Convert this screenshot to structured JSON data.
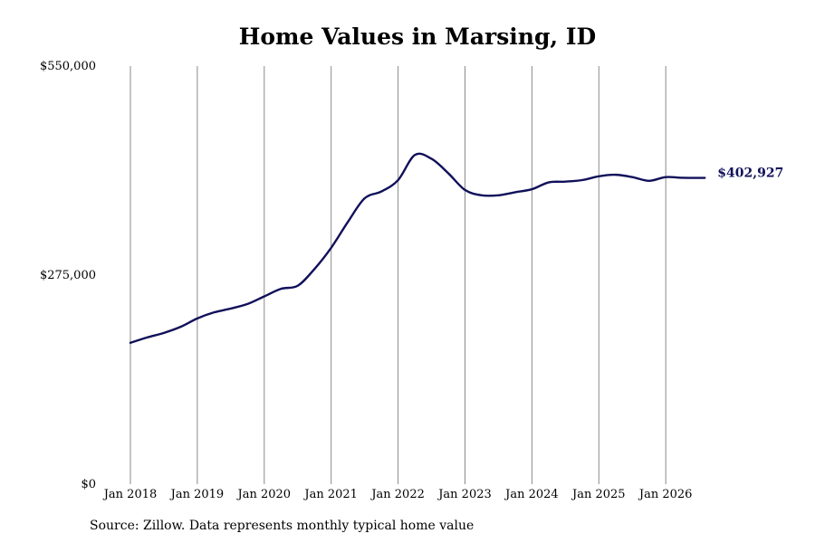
{
  "chart_data": {
    "type": "line",
    "title": "Home Values in Marsing, ID",
    "xlabel": "",
    "ylabel": "",
    "x_ticks": [
      "Jan 2018",
      "Jan 2019",
      "Jan 2020",
      "Jan 2021",
      "Jan 2022",
      "Jan 2023",
      "Jan 2024",
      "Jan 2025",
      "Jan 2026"
    ],
    "y_ticks": [
      "$0",
      "$275,000",
      "$550,000"
    ],
    "y_tick_values": [
      0,
      275000,
      550000
    ],
    "ylim": [
      0,
      550000
    ],
    "xlim": [
      "2018-01",
      "2026-08"
    ],
    "grid": "vertical",
    "line_color": "#10105a",
    "end_label": "$402,927",
    "series": [
      {
        "x": [
          "2018-01",
          "2018-04",
          "2018-07",
          "2018-10",
          "2019-01",
          "2019-04",
          "2019-07",
          "2019-10",
          "2020-01",
          "2020-04",
          "2020-07",
          "2020-10",
          "2021-01",
          "2021-04",
          "2021-07",
          "2021-10",
          "2022-01",
          "2022-04",
          "2022-07",
          "2022-10",
          "2023-01",
          "2023-04",
          "2023-07",
          "2023-10",
          "2024-01",
          "2024-04",
          "2024-07",
          "2024-10",
          "2025-01",
          "2025-04",
          "2025-07",
          "2025-10",
          "2026-01",
          "2026-04",
          "2026-08"
        ],
        "values": [
          186000,
          193000,
          199000,
          207000,
          218000,
          226000,
          231000,
          237000,
          247000,
          257000,
          261000,
          283000,
          311000,
          345000,
          376000,
          385000,
          400000,
          433000,
          428000,
          409000,
          387000,
          380000,
          380000,
          384000,
          388000,
          397000,
          398000,
          400000,
          405000,
          407000,
          404000,
          399000,
          404000,
          403000,
          402927
        ]
      }
    ]
  },
  "source": "Source: Zillow. Data represents monthly typical home value"
}
